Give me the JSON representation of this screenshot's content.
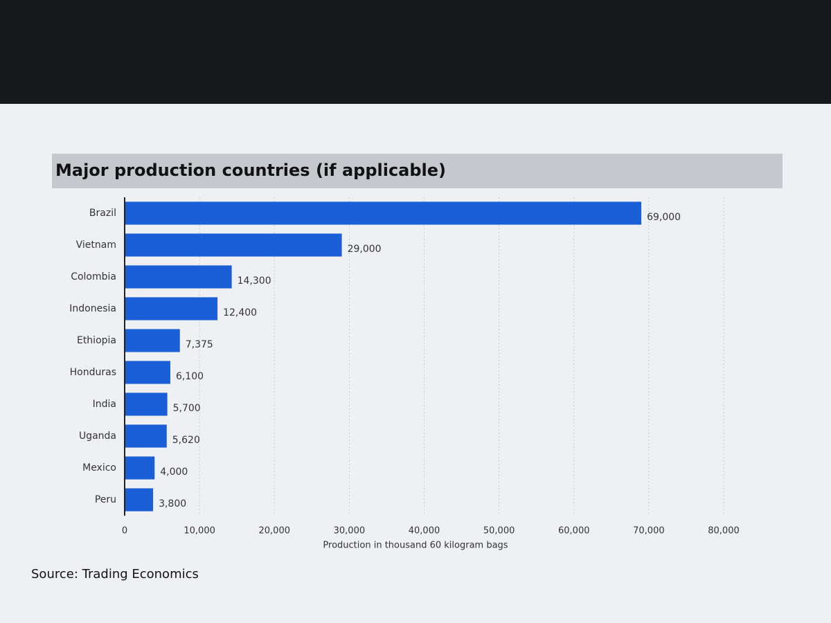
{
  "chart_data": {
    "type": "bar",
    "orientation": "horizontal",
    "title": "Major production countries (if applicable)",
    "categories": [
      "Brazil",
      "Vietnam",
      "Colombia",
      "Indonesia",
      "Ethiopia",
      "Honduras",
      "India",
      "Uganda",
      "Mexico",
      "Peru"
    ],
    "values": [
      69000,
      29000,
      14300,
      12400,
      7375,
      6100,
      5700,
      5620,
      4000,
      3800
    ],
    "value_labels": [
      "69,000",
      "29,000",
      "14,300",
      "12,400",
      "7,375",
      "6,100",
      "5,700",
      "5,620",
      "4,000",
      "3,800"
    ],
    "color": "#1a5fd6",
    "xlim": [
      0,
      80000
    ],
    "xticks": [
      0,
      {
        "value": 10000,
        "label": "10,000"
      },
      {
        "value": 20000,
        "label": "20,000"
      },
      {
        "value": 30000,
        "label": "30,000"
      },
      {
        "value": 40000,
        "label": "40,000"
      },
      {
        "value": 50000,
        "label": "50,000"
      },
      {
        "value": 60000,
        "label": "60,000"
      },
      {
        "value": 70000,
        "label": "70,000"
      },
      {
        "value": 80000,
        "label": "80,000"
      }
    ],
    "xlabel": "Production in thousand 60 kilogram bags",
    "grid": true,
    "source": "Source: Trading Economics"
  }
}
